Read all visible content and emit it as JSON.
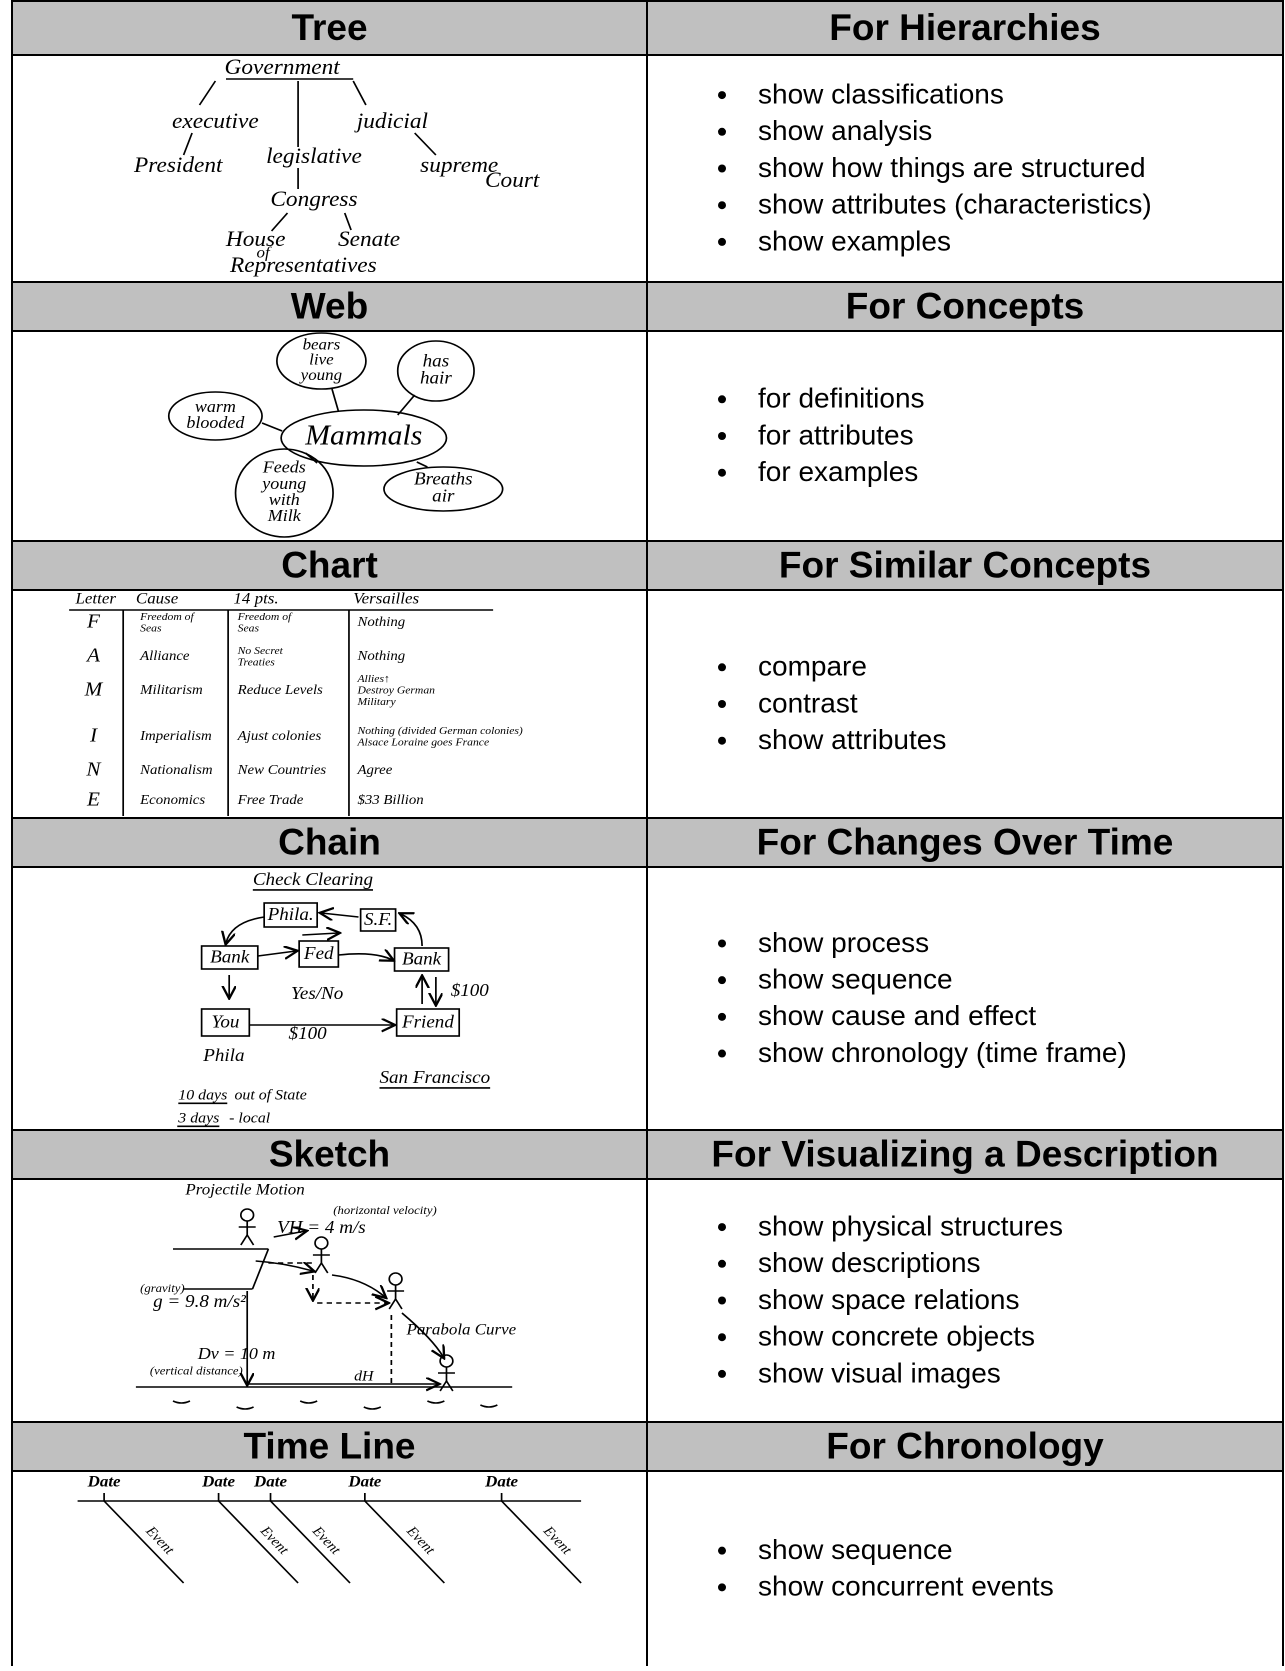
{
  "rows": [
    {
      "diagram": "Tree",
      "purpose": "For Hierarchies",
      "items": [
        "show classifications",
        "show analysis",
        "show how things are structured",
        "show attributes (characteristics)",
        "show examples"
      ],
      "sketch": [
        "Government",
        "executive",
        "judicial",
        "President",
        "legislative",
        "supreme",
        "Court",
        "Congress",
        "House",
        "of",
        "Representatives",
        "Senate"
      ]
    },
    {
      "diagram": "Web",
      "purpose": "For Concepts",
      "items": [
        "for definitions",
        "for attributes",
        "for examples"
      ],
      "sketch": [
        [
          "bears",
          "live",
          "young"
        ],
        [
          "has",
          "hair"
        ],
        [
          "warm",
          "blooded"
        ],
        [
          "Mammals"
        ],
        [
          "Feeds",
          "young",
          "with",
          "Milk"
        ],
        [
          "Breaths",
          "air"
        ]
      ]
    },
    {
      "diagram": "Chart",
      "purpose": "For Similar Concepts",
      "items": [
        "compare",
        "contrast",
        "show attributes"
      ],
      "sketch": {
        "header": [
          "Letter",
          "Cause",
          "14 pts.",
          "Versailles"
        ],
        "rows": [
          [
            [
              "F"
            ],
            [
              "Freedom of",
              "Seas"
            ],
            [
              "Freedom of",
              "Seas"
            ],
            [
              "Nothing"
            ]
          ],
          [
            [
              "A"
            ],
            [
              "Alliance"
            ],
            [
              "No Secret",
              "Treaties"
            ],
            [
              "Nothing"
            ]
          ],
          [
            [
              "M"
            ],
            [
              "Militarism"
            ],
            [
              "Reduce Levels"
            ],
            [
              "Allies↑",
              "Destroy German",
              "Military"
            ]
          ],
          [
            [
              "I"
            ],
            [
              "Imperialism"
            ],
            [
              "Ajust colonies"
            ],
            [
              "Nothing (divided German colonies)",
              "Alsace Loraine goes France"
            ]
          ],
          [
            [
              "N"
            ],
            [
              "Nationalism"
            ],
            [
              "New Countries"
            ],
            [
              "Agree"
            ]
          ],
          [
            [
              "E"
            ],
            [
              "Economics"
            ],
            [
              "Free Trade"
            ],
            [
              "$33 Billion"
            ]
          ]
        ]
      }
    },
    {
      "diagram": "Chain",
      "purpose": "For Changes Over Time",
      "items": [
        "show process",
        "show sequence",
        "show cause and effect",
        "show chronology (time frame)"
      ],
      "sketch": [
        "Check Clearing",
        "Phila.",
        "S.F.",
        "Bank",
        "Fed",
        "Bank",
        "Yes/No",
        "$100",
        "You",
        "Friend",
        "$100",
        "Phila",
        "San Francisco",
        "10 days",
        "out of State",
        "3 days",
        "- local"
      ]
    },
    {
      "diagram": "Sketch",
      "purpose": "For Visualizing a Description",
      "items": [
        "show physical structures",
        "show descriptions",
        "show space relations",
        "show concrete objects",
        "show visual images"
      ],
      "sketch": [
        "Projectile Motion",
        "(horizontal velocity)",
        "VH = 4 m/s",
        "(gravity)",
        "g = 9.8 m/s²",
        "Parabola Curve",
        "Dv = 10 m",
        "(vertical distance)",
        "dH"
      ]
    },
    {
      "diagram": "Time Line",
      "purpose": "For Chronology",
      "items": [
        "show sequence",
        "show concurrent events"
      ],
      "sketch": [
        "Date",
        "Date",
        "Date",
        "Date",
        "Date",
        "Event",
        "Event",
        "Event",
        "Event",
        "Event"
      ]
    }
  ]
}
